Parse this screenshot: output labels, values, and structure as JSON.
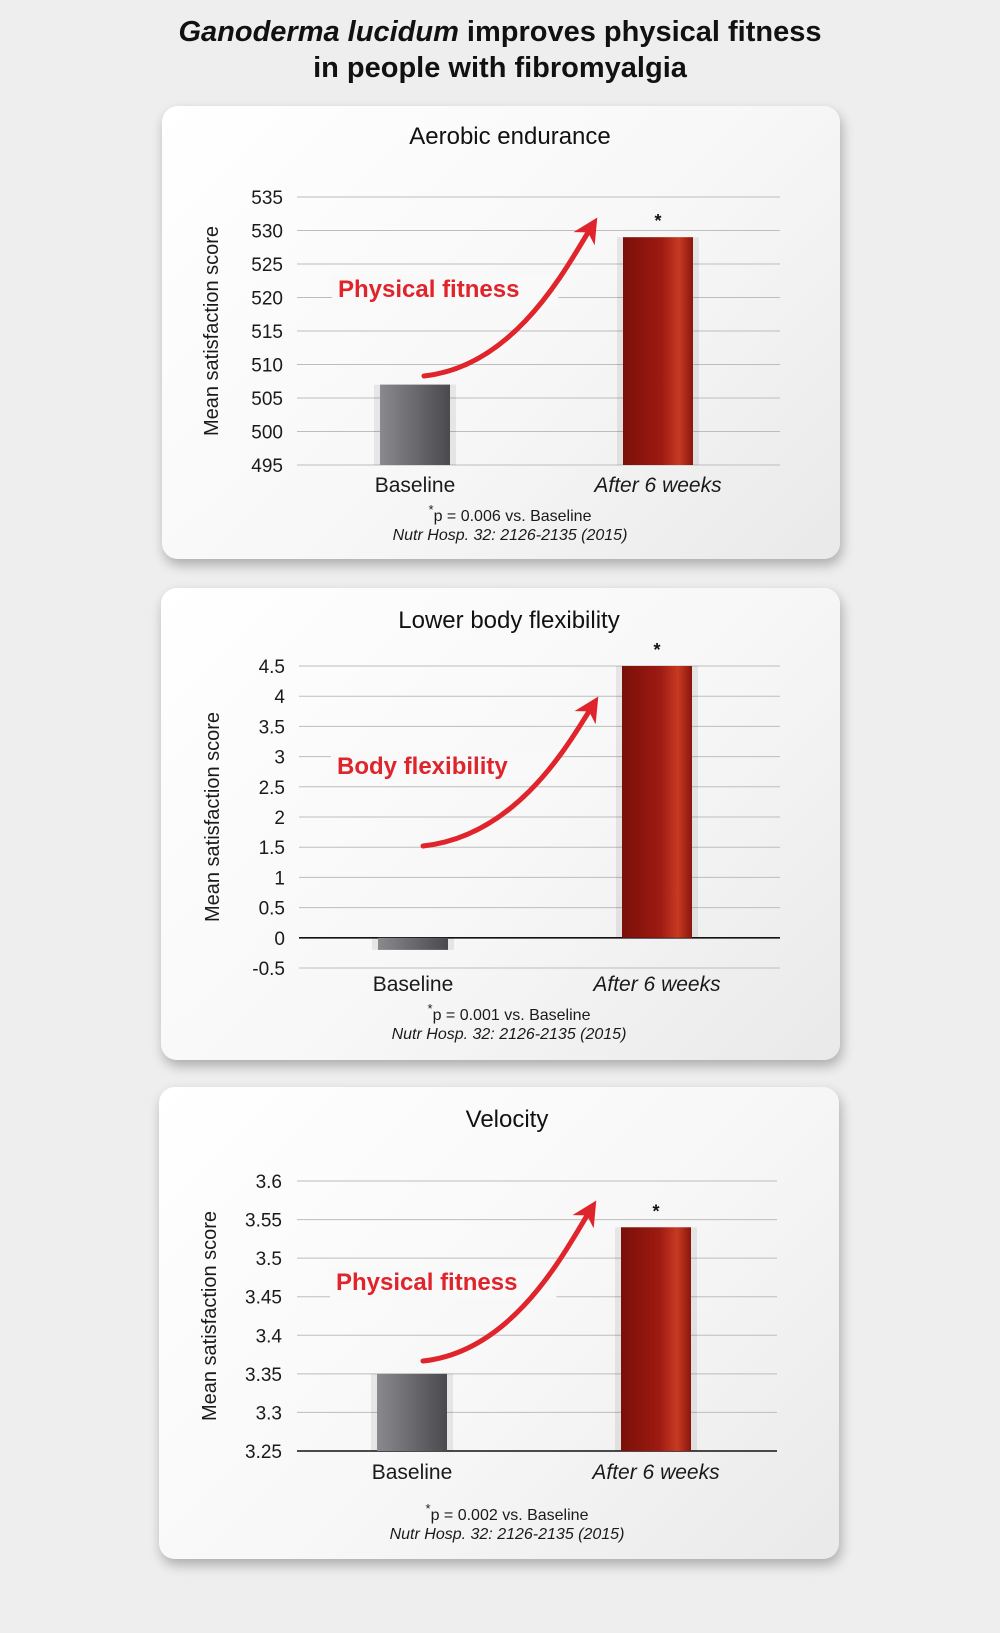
{
  "page": {
    "title_italic": "Ganoderma lucidum",
    "title_rest": " improves physical fitness",
    "title_line2": "in people with fibromyalgia"
  },
  "chart_data": [
    {
      "type": "bar",
      "title": "Aerobic endurance",
      "ylabel": "Mean satisfaction score",
      "categories": [
        "Baseline",
        "After 6 weeks"
      ],
      "values": [
        507,
        529
      ],
      "ylim": [
        495,
        535
      ],
      "yticks": [
        495,
        500,
        505,
        510,
        515,
        520,
        525,
        530,
        535
      ],
      "ytick_labels": [
        "495",
        "500",
        "505",
        "510",
        "515",
        "520",
        "525",
        "530",
        "535"
      ],
      "grid": true,
      "annotation": "Physical fitness",
      "significance_marker": "*",
      "pvalue_star": "*",
      "pvalue_text": "p = 0.006 vs. Baseline",
      "citation": "Nutr Hosp. 32: 2126-2135 (2015)",
      "colors": {
        "baseline": "#6a6a6e",
        "after": "#9e1a12",
        "arrow": "#e0242b"
      }
    },
    {
      "type": "bar",
      "title": "Lower body flexibility",
      "ylabel": "Mean satisfaction score",
      "categories": [
        "Baseline",
        "After 6 weeks"
      ],
      "values": [
        -0.2,
        4.5
      ],
      "ylim": [
        -0.5,
        4.5
      ],
      "yticks": [
        -0.5,
        0,
        0.5,
        1,
        1.5,
        2,
        2.5,
        3,
        3.5,
        4,
        4.5
      ],
      "ytick_labels": [
        "-0.5",
        "0",
        "0.5",
        "1",
        "1.5",
        "2",
        "2.5",
        "3",
        "3.5",
        "4",
        "4.5"
      ],
      "grid": true,
      "annotation": "Body flexibility",
      "significance_marker": "*",
      "pvalue_star": "*",
      "pvalue_text": "p = 0.001 vs. Baseline",
      "citation": "Nutr Hosp. 32: 2126-2135 (2015)",
      "colors": {
        "baseline": "#6a6a6e",
        "after": "#9e1a12",
        "arrow": "#e0242b"
      }
    },
    {
      "type": "bar",
      "title": "Velocity",
      "ylabel": "Mean satisfaction score",
      "categories": [
        "Baseline",
        "After 6 weeks"
      ],
      "values": [
        3.35,
        3.54
      ],
      "ylim": [
        3.25,
        3.6
      ],
      "yticks": [
        3.25,
        3.3,
        3.35,
        3.4,
        3.45,
        3.5,
        3.55,
        3.6
      ],
      "ytick_labels": [
        "3.25",
        "3.3",
        "3.35",
        "3.4",
        "3.45",
        "3.5",
        "3.55",
        "3.6"
      ],
      "grid": true,
      "annotation": "Physical fitness",
      "significance_marker": "*",
      "pvalue_star": "*",
      "pvalue_text": "p = 0.002 vs. Baseline",
      "citation": "Nutr Hosp. 32: 2126-2135 (2015)",
      "colors": {
        "baseline": "#6a6a6e",
        "after": "#9e1a12",
        "arrow": "#e0242b"
      }
    }
  ]
}
